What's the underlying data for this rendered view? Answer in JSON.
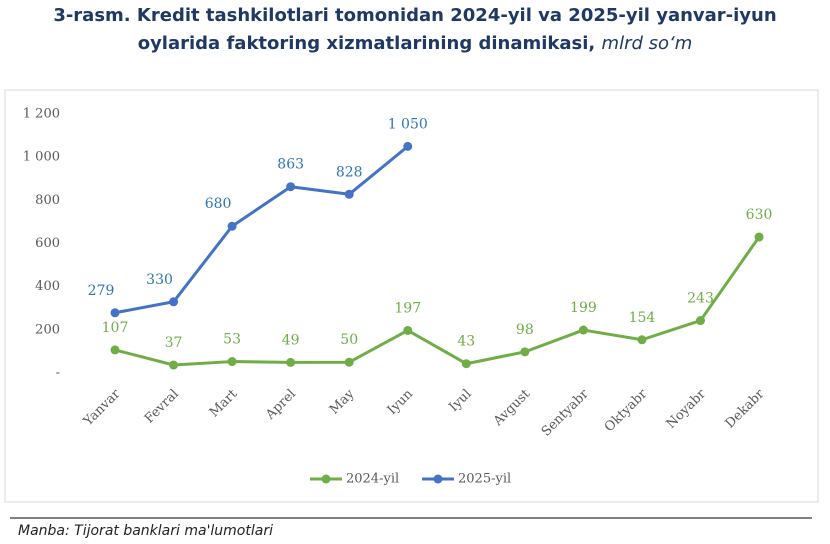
{
  "chart_data": {
    "type": "line",
    "title": "3-rasm. Kredit tashkilotlari tomonidan 2024-yil va 2025-yil yanvar-iyun oylarida faktoring xizmatlarining dinamikasi,",
    "unit": "mlrd so‘m",
    "source": "Manba: Tijorat banklari ma'lumotlari",
    "categories": [
      "Yanvar",
      "Fevral",
      "Mart",
      "Aprel",
      "May",
      "Iyun",
      "Iyul",
      "Avgust",
      "Sentyabr",
      "Oktyabr",
      "Noyabr",
      "Dekabr"
    ],
    "series": [
      {
        "name": "2024-yil",
        "color": "#70ad47",
        "values": [
          107,
          37,
          53,
          49,
          50,
          197,
          43,
          98,
          199,
          154,
          243,
          630
        ]
      },
      {
        "name": "2025-yil",
        "color": "#4472c4",
        "values": [
          279,
          330,
          680,
          863,
          828,
          1050,
          null,
          null,
          null,
          null,
          null,
          null
        ],
        "value_labels": [
          "279",
          "330",
          "680",
          "863",
          "828",
          "1 050",
          null,
          null,
          null,
          null,
          null,
          null
        ]
      }
    ],
    "ylim": [
      0,
      1200
    ],
    "yticks": [
      {
        "value": 0,
        "label": "-"
      },
      200,
      400,
      600,
      800,
      {
        "value": 1000,
        "label": "1 000"
      },
      {
        "value": 1200,
        "label": "1 200"
      }
    ],
    "grid": false,
    "legend": "bottom"
  }
}
